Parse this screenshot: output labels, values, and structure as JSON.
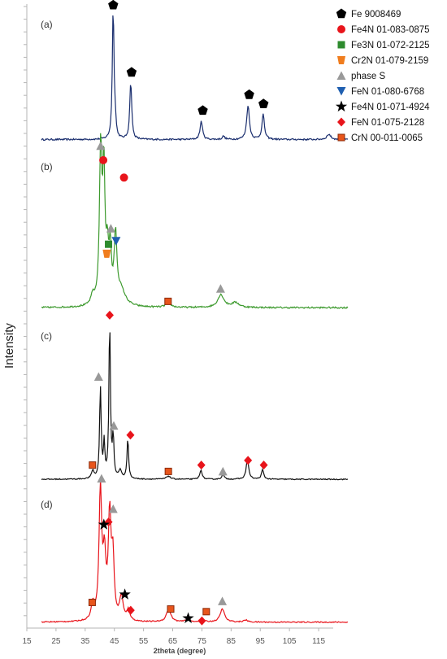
{
  "chart_data": {
    "type": "line",
    "xlabel": "2theta (degree)",
    "ylabel": "Intensity",
    "xlim": [
      15,
      120
    ],
    "x_ticks": [
      "15",
      "25",
      "35",
      "45",
      "55",
      "65",
      "75",
      "85",
      "95",
      "105",
      "115"
    ],
    "grid": false,
    "legend_position": "top-right",
    "legend": [
      {
        "label": "Fe 9008469",
        "marker": "pentagon",
        "color": "#000000"
      },
      {
        "label": "Fe4N  01-083-0875",
        "marker": "circle",
        "color": "#e8141b"
      },
      {
        "label": "Fe3N  01-072-2125",
        "marker": "square",
        "color": "#2e8b2e"
      },
      {
        "label": "Cr2N 01-079-2159",
        "marker": "trapezoid",
        "color": "#f07d1e"
      },
      {
        "label": "phase S",
        "marker": "triangle-up",
        "color": "#999999"
      },
      {
        "label": "FeN 01-080-6768",
        "marker": "triangle-down",
        "color": "#1f5fb0"
      },
      {
        "label": "Fe4N  01-071-4924",
        "marker": "star",
        "color": "#000000"
      },
      {
        "label": "FeN 01-075-2128",
        "marker": "diamond",
        "color": "#e8141b"
      },
      {
        "label": "CrN 00-011-0065",
        "marker": "square-outlined",
        "color": "#e8551b"
      }
    ],
    "series": [
      {
        "label": "(a)",
        "color": "#1a2e6e",
        "baseline": 0.04,
        "noise": 0.012,
        "peaks": [
          {
            "x": 44.6,
            "h": 1.0,
            "w": 0.35
          },
          {
            "x": 45.3,
            "h": 0.1,
            "w": 0.3
          },
          {
            "x": 50.6,
            "h": 0.44,
            "w": 0.4
          },
          {
            "x": 74.8,
            "h": 0.14,
            "w": 0.5
          },
          {
            "x": 82.4,
            "h": 0.025,
            "w": 0.5
          },
          {
            "x": 90.8,
            "h": 0.26,
            "w": 0.55
          },
          {
            "x": 96.0,
            "h": 0.19,
            "w": 0.5
          },
          {
            "x": 118.5,
            "h": 0.04,
            "w": 0.8
          }
        ],
        "markers": [
          {
            "type": "pentagon",
            "x": 44.6,
            "y": 1.06,
            "color": "#000000"
          },
          {
            "type": "pentagon",
            "x": 50.9,
            "y": 0.55,
            "color": "#000000"
          },
          {
            "type": "pentagon",
            "x": 75.3,
            "y": 0.26,
            "color": "#000000"
          },
          {
            "type": "pentagon",
            "x": 91.2,
            "y": 0.38,
            "color": "#000000"
          },
          {
            "type": "pentagon",
            "x": 96.1,
            "y": 0.31,
            "color": "#000000"
          }
        ]
      },
      {
        "label": "(b)",
        "color": "#3d9a2e",
        "baseline": 0.04,
        "noise": 0.01,
        "peaks": [
          {
            "x": 37.6,
            "h": 0.06,
            "w": 0.7
          },
          {
            "x": 40.3,
            "h": 0.97,
            "w": 0.5
          },
          {
            "x": 41.4,
            "h": 0.82,
            "w": 0.45
          },
          {
            "x": 42.6,
            "h": 0.3,
            "w": 0.5
          },
          {
            "x": 43.6,
            "h": 0.32,
            "w": 0.45
          },
          {
            "x": 45.4,
            "h": 0.42,
            "w": 0.55
          },
          {
            "x": 47.2,
            "h": 0.1,
            "w": 1.8
          },
          {
            "x": 63.5,
            "h": 0.03,
            "w": 1.0
          },
          {
            "x": 81.5,
            "h": 0.08,
            "w": 1.3
          },
          {
            "x": 86.5,
            "h": 0.03,
            "w": 1.5
          }
        ],
        "markers": [
          {
            "type": "triangle-up",
            "x": 40.3,
            "y": 1.06,
            "color": "#999999"
          },
          {
            "type": "circle",
            "x": 41.2,
            "y": 0.97,
            "color": "#e8141b"
          },
          {
            "type": "circle",
            "x": 48.3,
            "y": 0.86,
            "color": "#e8141b"
          },
          {
            "type": "triangle-up",
            "x": 43.8,
            "y": 0.54,
            "color": "#999999"
          },
          {
            "type": "square",
            "x": 43.0,
            "y": 0.44,
            "color": "#2e8b2e"
          },
          {
            "type": "triangle-down",
            "x": 45.6,
            "y": 0.46,
            "color": "#1f5fb0"
          },
          {
            "type": "trapezoid",
            "x": 42.4,
            "y": 0.38,
            "color": "#f07d1e"
          },
          {
            "type": "square-outlined",
            "x": 63.4,
            "y": 0.08,
            "color": "#e8551b"
          },
          {
            "type": "triangle-up",
            "x": 81.4,
            "y": 0.16,
            "color": "#999999"
          }
        ]
      },
      {
        "label": "(c)",
        "color": "#111111",
        "baseline": 0.02,
        "noise": 0.006,
        "peaks": [
          {
            "x": 37.6,
            "h": 0.05,
            "w": 0.5
          },
          {
            "x": 40.2,
            "h": 0.58,
            "w": 0.32
          },
          {
            "x": 41.5,
            "h": 0.22,
            "w": 0.3
          },
          {
            "x": 43.4,
            "h": 1.0,
            "w": 0.3
          },
          {
            "x": 44.6,
            "h": 0.26,
            "w": 0.3
          },
          {
            "x": 47.0,
            "h": 0.05,
            "w": 0.6
          },
          {
            "x": 49.6,
            "h": 0.26,
            "w": 0.32
          },
          {
            "x": 63.5,
            "h": 0.02,
            "w": 0.8
          },
          {
            "x": 74.7,
            "h": 0.06,
            "w": 0.45
          },
          {
            "x": 82.2,
            "h": 0.03,
            "w": 0.5
          },
          {
            "x": 90.6,
            "h": 0.13,
            "w": 0.5
          },
          {
            "x": 95.8,
            "h": 0.06,
            "w": 0.45
          }
        ],
        "markers": [
          {
            "type": "diamond",
            "x": 43.4,
            "y": 1.06,
            "color": "#e8141b"
          },
          {
            "type": "triangle-up",
            "x": 39.6,
            "y": 0.67,
            "color": "#999999"
          },
          {
            "type": "triangle-up",
            "x": 44.8,
            "y": 0.36,
            "color": "#999999"
          },
          {
            "type": "diamond",
            "x": 50.5,
            "y": 0.3,
            "color": "#e8141b"
          },
          {
            "type": "square-outlined",
            "x": 37.5,
            "y": 0.11,
            "color": "#e8551b"
          },
          {
            "type": "square-outlined",
            "x": 63.5,
            "y": 0.07,
            "color": "#e8551b"
          },
          {
            "type": "diamond",
            "x": 74.8,
            "y": 0.11,
            "color": "#e8141b"
          },
          {
            "type": "triangle-up",
            "x": 82.2,
            "y": 0.07,
            "color": "#999999"
          },
          {
            "type": "diamond",
            "x": 90.8,
            "y": 0.14,
            "color": "#e8141b"
          },
          {
            "type": "diamond",
            "x": 96.2,
            "y": 0.11,
            "color": "#e8141b"
          }
        ]
      },
      {
        "label": "(d)",
        "color": "#e8141b",
        "baseline": 0.02,
        "noise": 0.008,
        "peaks": [
          {
            "x": 37.6,
            "h": 0.12,
            "w": 0.6
          },
          {
            "x": 40.2,
            "h": 0.98,
            "w": 0.55
          },
          {
            "x": 41.6,
            "h": 0.45,
            "w": 0.6
          },
          {
            "x": 43.4,
            "h": 0.78,
            "w": 0.55
          },
          {
            "x": 44.5,
            "h": 0.45,
            "w": 0.5
          },
          {
            "x": 47.4,
            "h": 0.18,
            "w": 0.7
          },
          {
            "x": 49.8,
            "h": 0.08,
            "w": 0.6
          },
          {
            "x": 63.6,
            "h": 0.1,
            "w": 0.9
          },
          {
            "x": 70.0,
            "h": 0.02,
            "w": 0.8
          },
          {
            "x": 75.0,
            "h": 0.025,
            "w": 0.7
          },
          {
            "x": 82.0,
            "h": 0.1,
            "w": 0.9
          },
          {
            "x": 90.0,
            "h": 0.015,
            "w": 0.8
          }
        ],
        "markers": [
          {
            "type": "triangle-up",
            "x": 40.6,
            "y": 1.11,
            "color": "#999999"
          },
          {
            "type": "diamond",
            "x": 43.0,
            "y": 0.78,
            "color": "#e8141b"
          },
          {
            "type": "star",
            "x": 41.4,
            "y": 0.76,
            "color": "#000000"
          },
          {
            "type": "triangle-up",
            "x": 44.6,
            "y": 0.88,
            "color": "#999999"
          },
          {
            "type": "star",
            "x": 48.6,
            "y": 0.23,
            "color": "#000000"
          },
          {
            "type": "square-outlined",
            "x": 37.4,
            "y": 0.17,
            "color": "#e8551b"
          },
          {
            "type": "diamond",
            "x": 50.6,
            "y": 0.11,
            "color": "#e8141b"
          },
          {
            "type": "square-outlined",
            "x": 64.3,
            "y": 0.12,
            "color": "#e8551b"
          },
          {
            "type": "star",
            "x": 70.3,
            "y": 0.05,
            "color": "#000000"
          },
          {
            "type": "diamond",
            "x": 75.0,
            "y": 0.03,
            "color": "#e8141b"
          },
          {
            "type": "square-outlined",
            "x": 76.5,
            "y": 0.1,
            "color": "#e8551b"
          },
          {
            "type": "triangle-up",
            "x": 82.0,
            "y": 0.18,
            "color": "#999999"
          }
        ]
      }
    ]
  }
}
